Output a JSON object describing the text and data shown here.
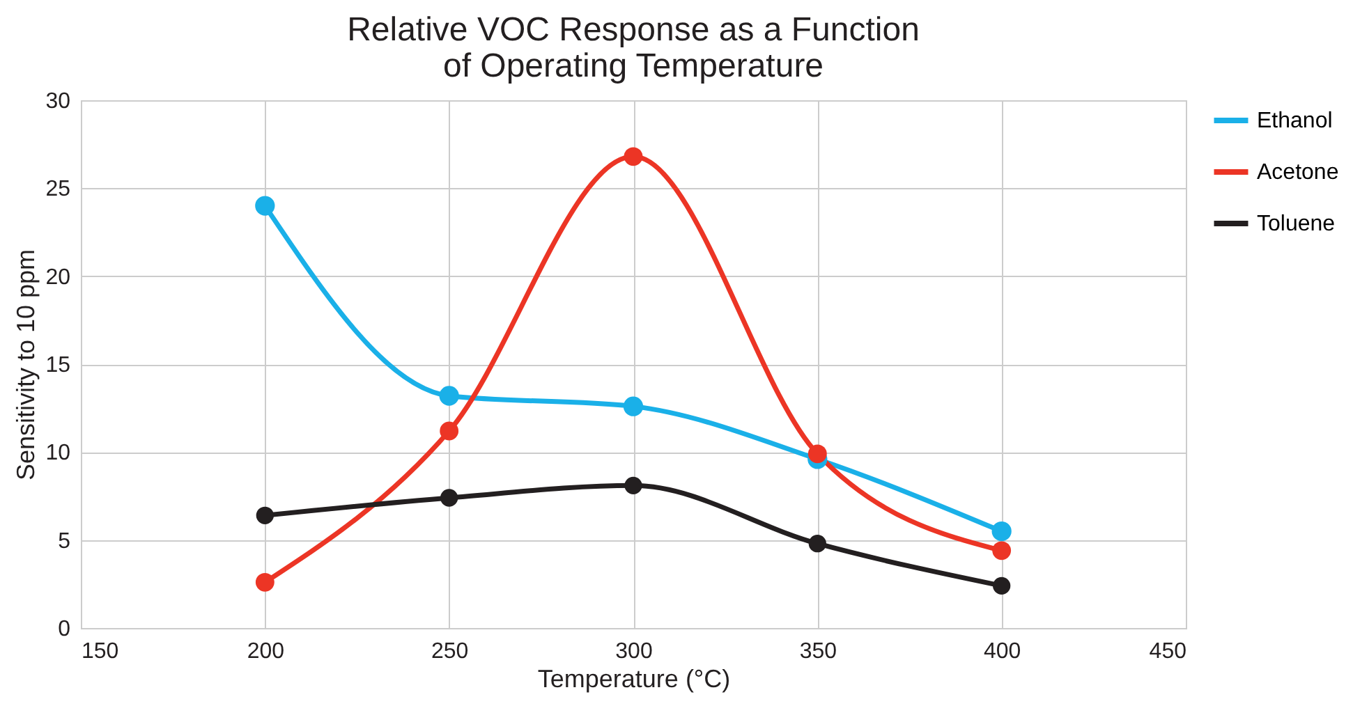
{
  "chart_data": {
    "type": "line",
    "title": "Relative VOC Response as a Function\nof Operating Temperature",
    "xlabel": "Temperature (°C)",
    "ylabel": "Sensitivity to 10 ppm",
    "x": [
      200,
      250,
      300,
      350,
      400
    ],
    "series": [
      {
        "name": "Ethanol",
        "color": "#1ab0e8",
        "values": [
          24,
          13.2,
          12.6,
          9.6,
          5.5
        ]
      },
      {
        "name": "Acetone",
        "color": "#ec3525",
        "values": [
          2.6,
          11.2,
          26.8,
          9.9,
          4.4
        ]
      },
      {
        "name": "Toluene",
        "color": "#231f20",
        "values": [
          6.4,
          7.4,
          8.1,
          4.8,
          2.4
        ]
      }
    ],
    "xlim": [
      150,
      450
    ],
    "xticks": [
      150,
      200,
      250,
      300,
      350,
      400,
      450
    ],
    "ylim": [
      0,
      30
    ],
    "yticks": [
      0,
      5,
      10,
      15,
      20,
      25,
      30
    ],
    "grid": true,
    "legend": "right",
    "marker": "circle",
    "line_style": "solid"
  }
}
